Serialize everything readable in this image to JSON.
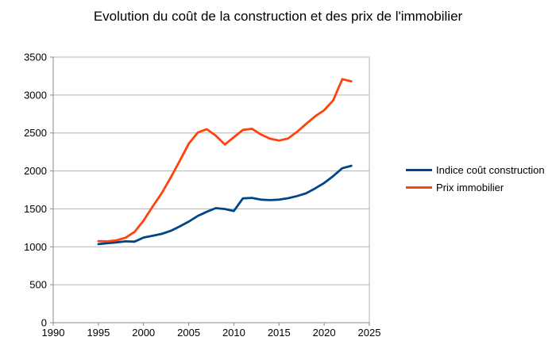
{
  "title": "Evolution du coût de la construction et des prix de l'immobilier",
  "chart_data": {
    "type": "line",
    "title": "Evolution du coût de la construction et des prix de l'immobilier",
    "x": [
      1995,
      1996,
      1997,
      1998,
      1999,
      2000,
      2001,
      2002,
      2003,
      2004,
      2005,
      2006,
      2007,
      2008,
      2009,
      2010,
      2011,
      2012,
      2013,
      2014,
      2015,
      2016,
      2017,
      2018,
      2019,
      2020,
      2021,
      2022,
      2023
    ],
    "series": [
      {
        "name": "Indice coût construction",
        "color": "#004586",
        "values": [
          1035,
          1048,
          1058,
          1072,
          1068,
          1122,
          1145,
          1170,
          1210,
          1268,
          1332,
          1406,
          1462,
          1510,
          1498,
          1472,
          1638,
          1645,
          1622,
          1615,
          1622,
          1640,
          1668,
          1705,
          1770,
          1841,
          1932,
          2035,
          2068
        ]
      },
      {
        "name": "Prix immobilier",
        "color": "#FF420E",
        "values": [
          1075,
          1072,
          1086,
          1120,
          1195,
          1345,
          1530,
          1705,
          1910,
          2130,
          2358,
          2505,
          2550,
          2465,
          2348,
          2445,
          2540,
          2556,
          2480,
          2425,
          2400,
          2428,
          2515,
          2620,
          2720,
          2800,
          2930,
          3210,
          3180
        ]
      }
    ],
    "xlabel": "",
    "ylabel": "",
    "xlim": [
      1990,
      2025
    ],
    "ylim": [
      0,
      3500
    ],
    "x_ticks": [
      1990,
      1995,
      2000,
      2005,
      2010,
      2015,
      2020,
      2025
    ],
    "y_ticks": [
      0,
      500,
      1000,
      1500,
      2000,
      2500,
      3000,
      3500
    ],
    "grid": "horizontal-only",
    "legend_position": "right-middle"
  },
  "styles": {
    "grid_color": "#b3b3b3",
    "axis_color": "#8a8a8a",
    "text_color": "#000000",
    "background": "#ffffff"
  }
}
